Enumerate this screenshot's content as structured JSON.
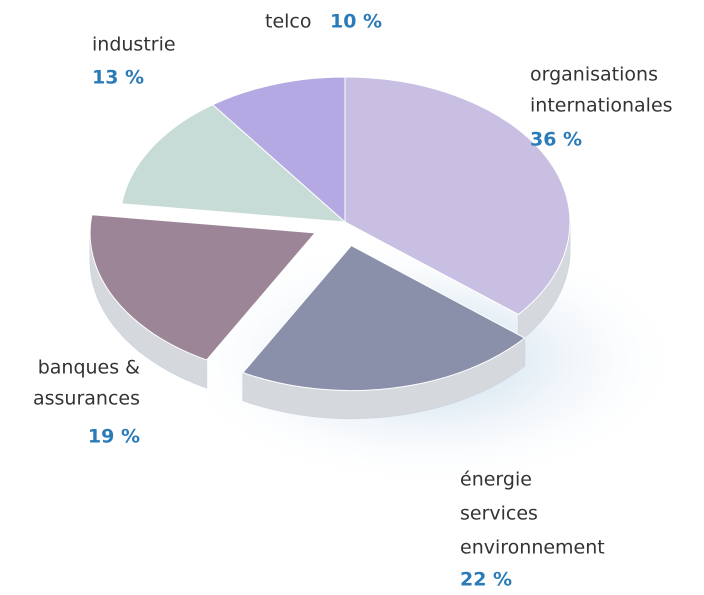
{
  "chart_data": {
    "type": "pie",
    "categories": [
      [
        "organisations",
        "internationales"
      ],
      [
        "énergie",
        "services",
        "environnement"
      ],
      [
        "banques &",
        "assurances"
      ],
      [
        "industrie"
      ],
      [
        "telco"
      ]
    ],
    "values": [
      36,
      22,
      19,
      13,
      10
    ],
    "value_labels": [
      "36 %",
      "22 %",
      "19 %",
      "13 %",
      "10 %"
    ],
    "colors": [
      "#c9bfe2",
      "#8b90aa",
      "#9d8598",
      "#c8dcd7",
      "#b4a9e2"
    ],
    "explode": [
      false,
      true,
      true,
      false,
      false
    ]
  }
}
